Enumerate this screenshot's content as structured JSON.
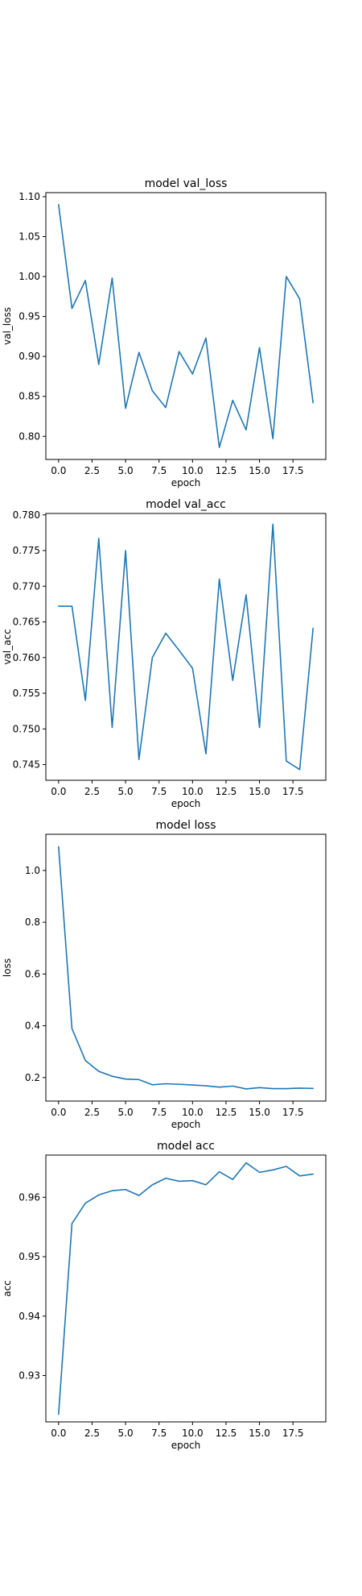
{
  "figure": {
    "background": "#ffffff",
    "line_color": "#1f77b4"
  },
  "chart_data": [
    {
      "type": "line",
      "title": "model val_loss",
      "xlabel": "epoch",
      "ylabel": "val_loss",
      "xlim": [
        -0.95,
        19.95
      ],
      "ylim": [
        0.771,
        1.105
      ],
      "xticks": [
        0,
        2.5,
        5,
        7.5,
        10,
        12.5,
        15,
        17.5
      ],
      "xtick_labels": [
        "0.0",
        "2.5",
        "5.0",
        "7.5",
        "10.0",
        "12.5",
        "15.0",
        "17.5"
      ],
      "yticks": [
        0.8,
        0.85,
        0.9,
        0.95,
        1.0,
        1.05,
        1.1
      ],
      "ytick_labels": [
        "0.80",
        "0.85",
        "0.90",
        "0.95",
        "1.00",
        "1.05",
        "1.10"
      ],
      "grid": false,
      "x": [
        0,
        1,
        2,
        3,
        4,
        5,
        6,
        7,
        8,
        9,
        10,
        11,
        12,
        13,
        14,
        15,
        16,
        17,
        18,
        19
      ],
      "series": [
        {
          "values": [
            1.09,
            0.96,
            0.995,
            0.89,
            0.998,
            0.835,
            0.905,
            0.857,
            0.836,
            0.906,
            0.878,
            0.923,
            0.786,
            0.845,
            0.808,
            0.911,
            0.797,
            1.0,
            0.972,
            0.842
          ]
        }
      ]
    },
    {
      "type": "line",
      "title": "model val_acc",
      "xlabel": "epoch",
      "ylabel": "val_acc",
      "xlim": [
        -0.95,
        19.95
      ],
      "ylim": [
        0.7428,
        0.7802
      ],
      "xticks": [
        0,
        2.5,
        5,
        7.5,
        10,
        12.5,
        15,
        17.5
      ],
      "xtick_labels": [
        "0.0",
        "2.5",
        "5.0",
        "7.5",
        "10.0",
        "12.5",
        "15.0",
        "17.5"
      ],
      "yticks": [
        0.745,
        0.75,
        0.755,
        0.76,
        0.765,
        0.77,
        0.775,
        0.78
      ],
      "ytick_labels": [
        "0.745",
        "0.750",
        "0.755",
        "0.760",
        "0.765",
        "0.770",
        "0.775",
        "0.780"
      ],
      "grid": false,
      "x": [
        0,
        1,
        2,
        3,
        4,
        5,
        6,
        7,
        8,
        9,
        10,
        11,
        12,
        13,
        14,
        15,
        16,
        17,
        18,
        19
      ],
      "series": [
        {
          "values": [
            0.7672,
            0.7672,
            0.754,
            0.7767,
            0.7502,
            0.775,
            0.7457,
            0.76,
            0.7634,
            0.761,
            0.7585,
            0.7465,
            0.771,
            0.7568,
            0.7688,
            0.7502,
            0.7787,
            0.7455,
            0.7443,
            0.7641
          ]
        }
      ]
    },
    {
      "type": "line",
      "title": "model loss",
      "xlabel": "epoch",
      "ylabel": "loss",
      "xlim": [
        -0.95,
        19.95
      ],
      "ylim": [
        0.109,
        1.14
      ],
      "xticks": [
        0,
        2.5,
        5,
        7.5,
        10,
        12.5,
        15,
        17.5
      ],
      "xtick_labels": [
        "0.0",
        "2.5",
        "5.0",
        "7.5",
        "10.0",
        "12.5",
        "15.0",
        "17.5"
      ],
      "yticks": [
        0.2,
        0.4,
        0.6,
        0.8,
        1.0
      ],
      "ytick_labels": [
        "0.2",
        "0.4",
        "0.6",
        "0.8",
        "1.0"
      ],
      "grid": false,
      "x": [
        0,
        1,
        2,
        3,
        4,
        5,
        6,
        7,
        8,
        9,
        10,
        11,
        12,
        13,
        14,
        15,
        16,
        17,
        18,
        19
      ],
      "series": [
        {
          "values": [
            1.092,
            0.389,
            0.266,
            0.224,
            0.205,
            0.194,
            0.192,
            0.172,
            0.176,
            0.174,
            0.171,
            0.168,
            0.163,
            0.167,
            0.156,
            0.161,
            0.157,
            0.157,
            0.159,
            0.158
          ]
        }
      ]
    },
    {
      "type": "line",
      "title": "model acc",
      "xlabel": "epoch",
      "ylabel": "acc",
      "xlim": [
        -0.95,
        19.95
      ],
      "ylim": [
        0.9222,
        0.9671
      ],
      "xticks": [
        0,
        2.5,
        5,
        7.5,
        10,
        12.5,
        15,
        17.5
      ],
      "xtick_labels": [
        "0.0",
        "2.5",
        "5.0",
        "7.5",
        "10.0",
        "12.5",
        "15.0",
        "17.5"
      ],
      "yticks": [
        0.93,
        0.94,
        0.95,
        0.96
      ],
      "ytick_labels": [
        "0.93",
        "0.94",
        "0.95",
        "0.96"
      ],
      "grid": false,
      "x": [
        0,
        1,
        2,
        3,
        4,
        5,
        6,
        7,
        8,
        9,
        10,
        11,
        12,
        13,
        14,
        15,
        16,
        17,
        18,
        19
      ],
      "series": [
        {
          "values": [
            0.9235,
            0.9556,
            0.959,
            0.9604,
            0.9611,
            0.9613,
            0.9603,
            0.9621,
            0.9632,
            0.9627,
            0.9628,
            0.9621,
            0.9643,
            0.963,
            0.9658,
            0.9642,
            0.9646,
            0.9652,
            0.9636,
            0.9639
          ]
        }
      ]
    }
  ]
}
